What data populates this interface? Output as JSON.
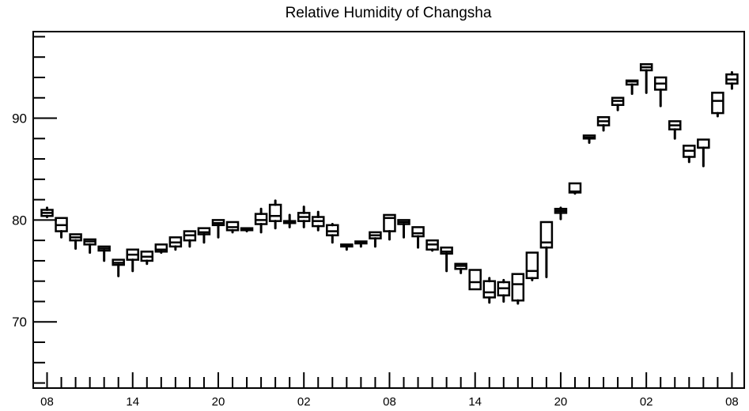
{
  "chart_data": {
    "type": "boxplot",
    "title": "Relative Humidity of Changsha",
    "xlabel": "",
    "ylabel": "",
    "ylim": [
      63.5,
      98.5
    ],
    "y_ticks": [
      70,
      80,
      90
    ],
    "x_tick_labels": [
      "08",
      "14",
      "20",
      "02",
      "08",
      "14",
      "20",
      "02",
      "08"
    ],
    "x_tick_positions": [
      0,
      6,
      12,
      18,
      24,
      30,
      36,
      42,
      48
    ],
    "grid": false,
    "legend": "none",
    "boxes": [
      {
        "hour": 0,
        "min": 80.3,
        "q1": 80.4,
        "median": 80.7,
        "q3": 81.0,
        "max": 81.2
      },
      {
        "hour": 1,
        "min": 78.3,
        "q1": 78.9,
        "median": 79.5,
        "q3": 80.2,
        "max": 80.2
      },
      {
        "hour": 2,
        "min": 77.2,
        "q1": 78.0,
        "median": 78.3,
        "q3": 78.6,
        "max": 78.6
      },
      {
        "hour": 3,
        "min": 76.8,
        "q1": 77.6,
        "median": 77.9,
        "q3": 78.1,
        "max": 78.1
      },
      {
        "hour": 4,
        "min": 76.0,
        "q1": 77.0,
        "median": 77.2,
        "q3": 77.4,
        "max": 77.4
      },
      {
        "hour": 5,
        "min": 74.5,
        "q1": 75.6,
        "median": 75.8,
        "q3": 76.1,
        "max": 76.1
      },
      {
        "hour": 6,
        "min": 75.0,
        "q1": 76.1,
        "median": 76.6,
        "q3": 77.1,
        "max": 77.1
      },
      {
        "hour": 7,
        "min": 75.7,
        "q1": 76.0,
        "median": 76.4,
        "q3": 76.9,
        "max": 76.9
      },
      {
        "hour": 8,
        "min": 76.8,
        "q1": 76.9,
        "median": 77.1,
        "q3": 77.6,
        "max": 77.6
      },
      {
        "hour": 9,
        "min": 77.1,
        "q1": 77.4,
        "median": 77.8,
        "q3": 78.3,
        "max": 78.3
      },
      {
        "hour": 10,
        "min": 77.4,
        "q1": 78.0,
        "median": 78.5,
        "q3": 78.9,
        "max": 78.9
      },
      {
        "hour": 11,
        "min": 77.8,
        "q1": 78.6,
        "median": 78.8,
        "q3": 79.2,
        "max": 79.2
      },
      {
        "hour": 12,
        "min": 78.3,
        "q1": 79.5,
        "median": 79.7,
        "q3": 80.0,
        "max": 80.0
      },
      {
        "hour": 13,
        "min": 78.8,
        "q1": 79.0,
        "median": 79.3,
        "q3": 79.8,
        "max": 79.8
      },
      {
        "hour": 14,
        "min": 78.9,
        "q1": 79.0,
        "median": 79.1,
        "q3": 79.2,
        "max": 79.2
      },
      {
        "hour": 15,
        "min": 78.8,
        "q1": 79.6,
        "median": 80.0,
        "q3": 80.6,
        "max": 81.1
      },
      {
        "hour": 16,
        "min": 79.2,
        "q1": 79.9,
        "median": 80.4,
        "q3": 81.5,
        "max": 81.9
      },
      {
        "hour": 17,
        "min": 79.3,
        "q1": 79.7,
        "median": 79.8,
        "q3": 79.9,
        "max": 80.5
      },
      {
        "hour": 18,
        "min": 79.3,
        "q1": 79.9,
        "median": 80.3,
        "q3": 80.7,
        "max": 81.3
      },
      {
        "hour": 19,
        "min": 79.0,
        "q1": 79.4,
        "median": 79.9,
        "q3": 80.3,
        "max": 80.8
      },
      {
        "hour": 20,
        "min": 77.8,
        "q1": 78.5,
        "median": 78.9,
        "q3": 79.5,
        "max": 79.6
      },
      {
        "hour": 21,
        "min": 77.1,
        "q1": 77.4,
        "median": 77.5,
        "q3": 77.6,
        "max": 77.6
      },
      {
        "hour": 22,
        "min": 77.4,
        "q1": 77.7,
        "median": 77.8,
        "q3": 77.9,
        "max": 77.9
      },
      {
        "hour": 23,
        "min": 77.4,
        "q1": 78.2,
        "median": 78.5,
        "q3": 78.8,
        "max": 78.8
      },
      {
        "hour": 24,
        "min": 78.1,
        "q1": 78.9,
        "median": 80.2,
        "q3": 80.5,
        "max": 80.5
      },
      {
        "hour": 25,
        "min": 78.3,
        "q1": 79.6,
        "median": 79.8,
        "q3": 80.0,
        "max": 80.0
      },
      {
        "hour": 26,
        "min": 77.3,
        "q1": 78.4,
        "median": 78.7,
        "q3": 79.3,
        "max": 79.3
      },
      {
        "hour": 27,
        "min": 77.0,
        "q1": 77.1,
        "median": 77.6,
        "q3": 78.0,
        "max": 78.0
      },
      {
        "hour": 28,
        "min": 75.0,
        "q1": 76.7,
        "median": 76.9,
        "q3": 77.3,
        "max": 77.3
      },
      {
        "hour": 29,
        "min": 74.8,
        "q1": 75.2,
        "median": 75.5,
        "q3": 75.7,
        "max": 75.7
      },
      {
        "hour": 30,
        "min": 73.2,
        "q1": 73.2,
        "median": 73.9,
        "q3": 75.1,
        "max": 75.1
      },
      {
        "hour": 31,
        "min": 71.9,
        "q1": 72.4,
        "median": 72.9,
        "q3": 74.0,
        "max": 74.3
      },
      {
        "hour": 32,
        "min": 72.0,
        "q1": 72.6,
        "median": 73.3,
        "q3": 73.9,
        "max": 74.1
      },
      {
        "hour": 33,
        "min": 71.8,
        "q1": 72.1,
        "median": 73.7,
        "q3": 74.7,
        "max": 74.7
      },
      {
        "hour": 34,
        "min": 74.1,
        "q1": 74.3,
        "median": 75.0,
        "q3": 76.8,
        "max": 76.8
      },
      {
        "hour": 35,
        "min": 74.4,
        "q1": 77.3,
        "median": 77.8,
        "q3": 79.8,
        "max": 79.8
      },
      {
        "hour": 36,
        "min": 80.1,
        "q1": 80.7,
        "median": 80.9,
        "q3": 81.1,
        "max": 81.2
      },
      {
        "hour": 37,
        "min": 82.6,
        "q1": 82.7,
        "median": 82.8,
        "q3": 83.6,
        "max": 83.6
      },
      {
        "hour": 38,
        "min": 87.6,
        "q1": 88.0,
        "median": 88.1,
        "q3": 88.3,
        "max": 88.3
      },
      {
        "hour": 39,
        "min": 88.8,
        "q1": 89.3,
        "median": 89.7,
        "q3": 90.1,
        "max": 90.1
      },
      {
        "hour": 40,
        "min": 90.8,
        "q1": 91.3,
        "median": 91.7,
        "q3": 92.0,
        "max": 92.0
      },
      {
        "hour": 41,
        "min": 92.4,
        "q1": 93.3,
        "median": 93.6,
        "q3": 93.7,
        "max": 93.7
      },
      {
        "hour": 42,
        "min": 92.5,
        "q1": 94.7,
        "median": 95.0,
        "q3": 95.3,
        "max": 95.3
      },
      {
        "hour": 43,
        "min": 91.2,
        "q1": 92.8,
        "median": 93.4,
        "q3": 94.0,
        "max": 94.0
      },
      {
        "hour": 44,
        "min": 88.0,
        "q1": 88.9,
        "median": 89.3,
        "q3": 89.7,
        "max": 89.7
      },
      {
        "hour": 45,
        "min": 85.7,
        "q1": 86.2,
        "median": 86.8,
        "q3": 87.3,
        "max": 87.3
      },
      {
        "hour": 46,
        "min": 85.3,
        "q1": 87.1,
        "median": 87.1,
        "q3": 87.9,
        "max": 87.9
      },
      {
        "hour": 47,
        "min": 90.2,
        "q1": 90.5,
        "median": 91.7,
        "q3": 92.5,
        "max": 92.5
      },
      {
        "hour": 48,
        "min": 92.9,
        "q1": 93.4,
        "median": 93.8,
        "q3": 94.3,
        "max": 94.5
      }
    ]
  }
}
